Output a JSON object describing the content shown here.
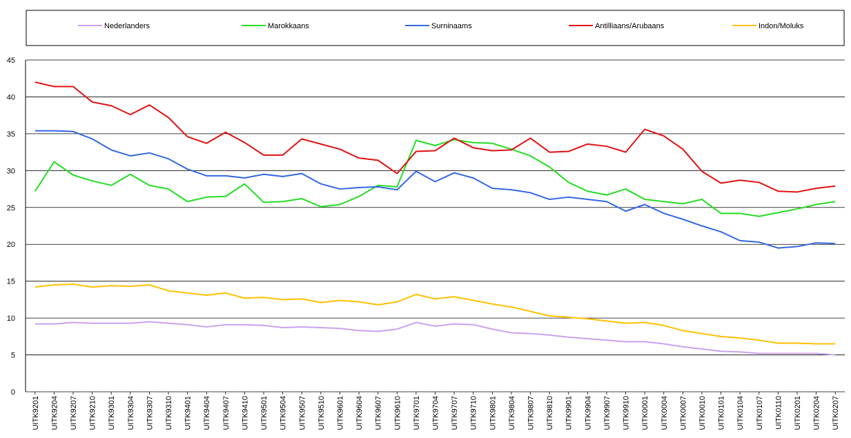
{
  "chart_data": {
    "type": "line",
    "categories": [
      "UITK9201",
      "UITK9204",
      "UITK9207",
      "UITK9210",
      "UITK9301",
      "UITK9304",
      "UITK9307",
      "UITK9310",
      "UITK9401",
      "UITK9404",
      "UITK9407",
      "UITK9410",
      "UITK9501",
      "UITK9504",
      "UITK9507",
      "UITK9510",
      "UITK9601",
      "UITK9604",
      "UITK9607",
      "UITK9610",
      "UITK9701",
      "UITK9704",
      "UITK9707",
      "UITK9710",
      "UITK9801",
      "UITK9804",
      "UITK9807",
      "UITK9810",
      "UITK9901",
      "UITK9904",
      "UITK9907",
      "UITK9910",
      "UITK0001",
      "UITK0004",
      "UITK0007",
      "UITK0010",
      "UITK0101",
      "UITK0104",
      "UITK0107",
      "UITK0110",
      "UITK0201",
      "UITK0204",
      "UITK0207"
    ],
    "series": [
      {
        "name": "Nederlanders",
        "color": "#c8a2f0",
        "values": [
          9.2,
          9.2,
          9.4,
          9.3,
          9.3,
          9.3,
          9.5,
          9.3,
          9.1,
          8.8,
          9.1,
          9.1,
          9.0,
          8.7,
          8.8,
          8.7,
          8.6,
          8.3,
          8.2,
          8.5,
          9.4,
          8.9,
          9.2,
          9.1,
          8.5,
          8.0,
          7.9,
          7.7,
          7.4,
          7.2,
          7.0,
          6.8,
          6.8,
          6.5,
          6.1,
          5.8,
          5.5,
          5.4,
          5.2,
          5.2,
          5.2,
          5.2,
          5.0
        ]
      },
      {
        "name": "Marokkaans",
        "color": "#22dd22",
        "values": [
          27.2,
          31.2,
          29.4,
          28.6,
          28.0,
          29.5,
          28.0,
          27.5,
          25.8,
          26.4,
          26.5,
          28.2,
          25.7,
          25.8,
          26.2,
          25.1,
          25.4,
          26.5,
          28.0,
          27.8,
          34.1,
          33.4,
          34.2,
          33.8,
          33.7,
          32.9,
          32.0,
          30.5,
          28.4,
          27.2,
          26.7,
          27.5,
          26.1,
          25.8,
          25.5,
          26.1,
          24.2,
          24.2,
          23.8,
          24.3,
          24.8,
          25.4,
          25.8
        ]
      },
      {
        "name": "Surninaams",
        "color": "#3366e6",
        "values": [
          35.4,
          35.4,
          35.3,
          34.3,
          32.8,
          32.0,
          32.4,
          31.6,
          30.2,
          29.3,
          29.3,
          29.0,
          29.5,
          29.2,
          29.6,
          28.2,
          27.5,
          27.7,
          27.8,
          27.4,
          29.9,
          28.5,
          29.7,
          29.0,
          27.6,
          27.4,
          27.0,
          26.1,
          26.4,
          26.1,
          25.8,
          24.5,
          25.4,
          24.2,
          23.4,
          22.5,
          21.7,
          20.5,
          20.3,
          19.5,
          19.7,
          20.2,
          20.1
        ]
      },
      {
        "name": "Antilliaans/Arubaans",
        "color": "#e01010",
        "values": [
          42.0,
          41.4,
          41.4,
          39.3,
          38.8,
          37.6,
          38.9,
          37.2,
          34.6,
          33.7,
          35.2,
          33.8,
          32.1,
          32.1,
          34.3,
          33.6,
          32.9,
          31.7,
          31.4,
          29.6,
          32.6,
          32.7,
          34.4,
          33.1,
          32.7,
          32.8,
          34.4,
          32.5,
          32.6,
          33.6,
          33.3,
          32.5,
          35.6,
          34.7,
          32.9,
          29.9,
          28.3,
          28.7,
          28.4,
          27.2,
          27.1,
          27.6,
          27.9
        ]
      },
      {
        "name": "Indon/Moluks",
        "color": "#ffc000",
        "values": [
          14.2,
          14.5,
          14.6,
          14.2,
          14.4,
          14.3,
          14.5,
          13.7,
          13.4,
          13.1,
          13.4,
          12.7,
          12.8,
          12.5,
          12.6,
          12.1,
          12.4,
          12.2,
          11.8,
          12.2,
          13.2,
          12.6,
          12.9,
          12.4,
          11.9,
          11.5,
          10.9,
          10.3,
          10.1,
          9.9,
          9.6,
          9.3,
          9.4,
          9.0,
          8.3,
          7.9,
          7.5,
          7.3,
          7.0,
          6.6,
          6.6,
          6.5,
          6.5
        ]
      }
    ],
    "ylim": [
      0,
      45
    ],
    "yticks": [
      0,
      5,
      10,
      15,
      20,
      25,
      30,
      35,
      40,
      45
    ],
    "grid": true,
    "legend": "top"
  }
}
